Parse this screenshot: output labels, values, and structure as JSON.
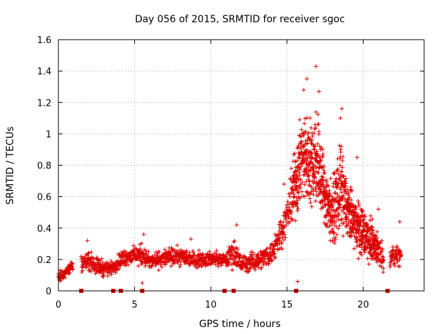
{
  "chart_data": {
    "type": "scatter",
    "title": "Day 056 of 2015, SRMTID for receiver sgoc",
    "xlabel": "GPS time / hours",
    "ylabel": "SRMTID / TECUs",
    "xlim": [
      0,
      24
    ],
    "ylim": [
      0,
      1.6
    ],
    "xticks": [
      0,
      5,
      10,
      15,
      20
    ],
    "xtick_labels": [
      "0",
      "5",
      "10",
      "15",
      "20"
    ],
    "yticks": [
      0,
      0.2,
      0.4,
      0.6,
      0.8,
      1.0,
      1.2,
      1.4,
      1.6
    ],
    "ytick_labels": [
      "0",
      "0.2",
      "0.4",
      "0.6",
      "0.8",
      "1",
      "1.2",
      "1.4",
      "1.6"
    ],
    "grid": true,
    "marker": "plus",
    "color": "#dd0000",
    "baseline_marker": "square",
    "baseline_x": [
      1.5,
      3.6,
      4.1,
      5.5,
      10.9,
      11.5,
      15.6,
      21.6
    ],
    "envelope": [
      {
        "x": 0.0,
        "lo": 0.05,
        "hi": 0.12
      },
      {
        "x": 0.5,
        "lo": 0.08,
        "hi": 0.16
      },
      {
        "x": 1.0,
        "lo": 0.12,
        "hi": 0.22
      },
      {
        "x": 1.5,
        "lo": 0.1,
        "hi": 0.25
      },
      {
        "x": 2.0,
        "lo": 0.11,
        "hi": 0.28
      },
      {
        "x": 2.5,
        "lo": 0.08,
        "hi": 0.24
      },
      {
        "x": 3.0,
        "lo": 0.07,
        "hi": 0.22
      },
      {
        "x": 3.5,
        "lo": 0.09,
        "hi": 0.2
      },
      {
        "x": 4.0,
        "lo": 0.12,
        "hi": 0.26
      },
      {
        "x": 4.5,
        "lo": 0.14,
        "hi": 0.3
      },
      {
        "x": 5.0,
        "lo": 0.15,
        "hi": 0.3
      },
      {
        "x": 5.5,
        "lo": 0.13,
        "hi": 0.33
      },
      {
        "x": 6.0,
        "lo": 0.12,
        "hi": 0.25
      },
      {
        "x": 7.0,
        "lo": 0.13,
        "hi": 0.29
      },
      {
        "x": 8.0,
        "lo": 0.14,
        "hi": 0.3
      },
      {
        "x": 9.0,
        "lo": 0.13,
        "hi": 0.27
      },
      {
        "x": 10.0,
        "lo": 0.14,
        "hi": 0.27
      },
      {
        "x": 11.0,
        "lo": 0.14,
        "hi": 0.25
      },
      {
        "x": 11.5,
        "lo": 0.1,
        "hi": 0.4
      },
      {
        "x": 12.0,
        "lo": 0.09,
        "hi": 0.25
      },
      {
        "x": 13.0,
        "lo": 0.11,
        "hi": 0.27
      },
      {
        "x": 14.0,
        "lo": 0.14,
        "hi": 0.34
      },
      {
        "x": 14.7,
        "lo": 0.22,
        "hi": 0.58
      },
      {
        "x": 15.0,
        "lo": 0.35,
        "hi": 0.6
      },
      {
        "x": 15.5,
        "lo": 0.35,
        "hi": 1.0
      },
      {
        "x": 16.0,
        "lo": 0.45,
        "hi": 1.25
      },
      {
        "x": 16.5,
        "lo": 0.45,
        "hi": 1.2
      },
      {
        "x": 17.0,
        "lo": 0.4,
        "hi": 1.3
      },
      {
        "x": 17.5,
        "lo": 0.3,
        "hi": 0.9
      },
      {
        "x": 18.0,
        "lo": 0.22,
        "hi": 0.75
      },
      {
        "x": 18.5,
        "lo": 0.28,
        "hi": 1.05
      },
      {
        "x": 19.0,
        "lo": 0.25,
        "hi": 0.75
      },
      {
        "x": 19.5,
        "lo": 0.2,
        "hi": 0.65
      },
      {
        "x": 20.0,
        "lo": 0.15,
        "hi": 0.6
      },
      {
        "x": 20.5,
        "lo": 0.14,
        "hi": 0.5
      },
      {
        "x": 21.0,
        "lo": 0.12,
        "hi": 0.4
      },
      {
        "x": 21.3,
        "lo": 0.1,
        "hi": 0.35
      },
      {
        "x": 21.7,
        "lo": 0.12,
        "hi": 0.3
      },
      {
        "x": 22.0,
        "lo": 0.13,
        "hi": 0.3
      },
      {
        "x": 22.5,
        "lo": 0.13,
        "hi": 0.35
      }
    ],
    "outliers": [
      {
        "x": 16.9,
        "y": 1.43
      },
      {
        "x": 16.3,
        "y": 1.35
      },
      {
        "x": 17.1,
        "y": 1.27
      },
      {
        "x": 18.6,
        "y": 1.16
      },
      {
        "x": 18.5,
        "y": 1.1
      },
      {
        "x": 16.1,
        "y": 1.28
      },
      {
        "x": 19.6,
        "y": 0.85
      },
      {
        "x": 15.8,
        "y": 0.99
      },
      {
        "x": 14.8,
        "y": 0.68
      },
      {
        "x": 11.7,
        "y": 0.42
      },
      {
        "x": 5.6,
        "y": 0.36
      },
      {
        "x": 1.9,
        "y": 0.32
      },
      {
        "x": 8.7,
        "y": 0.33
      },
      {
        "x": 22.4,
        "y": 0.44
      },
      {
        "x": 15.7,
        "y": 0.06
      },
      {
        "x": 5.5,
        "y": 0.05
      },
      {
        "x": 21.0,
        "y": 0.52
      },
      {
        "x": 0.05,
        "y": 0.09
      },
      {
        "x": 0.1,
        "y": 0.13
      }
    ]
  }
}
